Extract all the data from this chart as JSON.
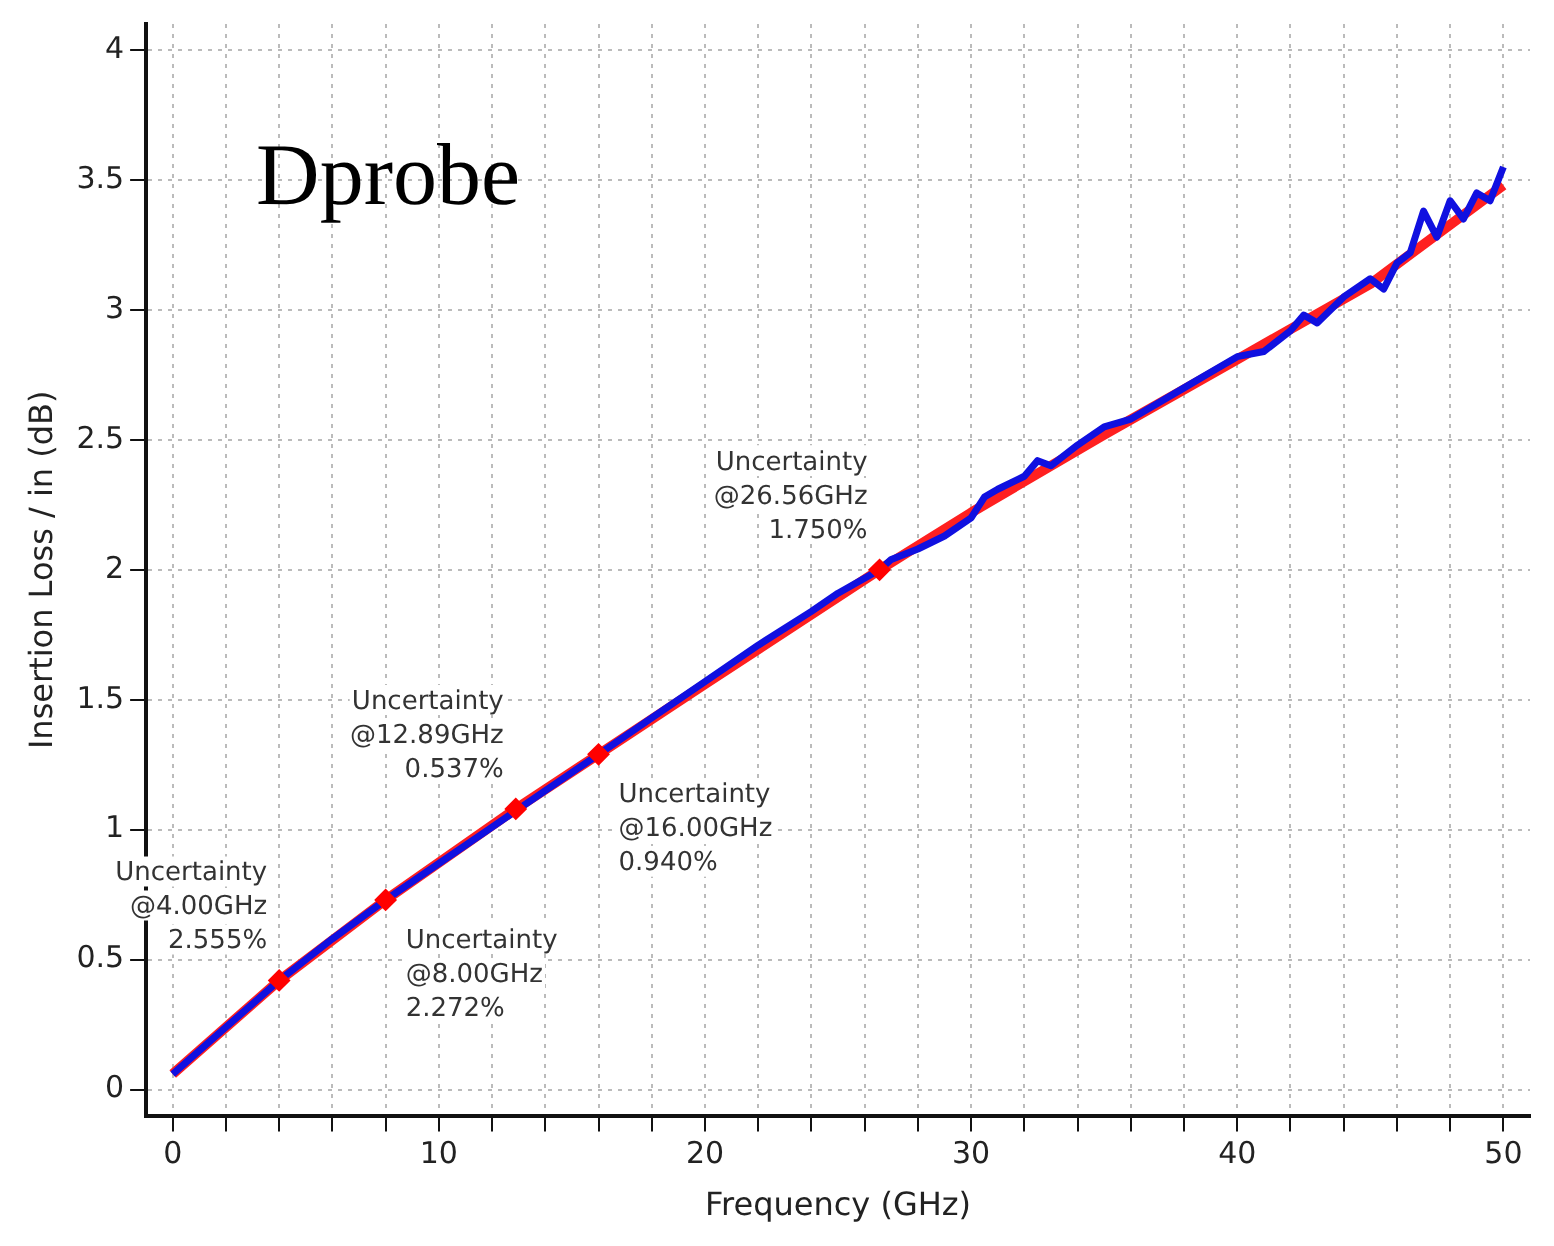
{
  "chart_data": {
    "type": "line",
    "xlabel": "Frequency (GHz)",
    "ylabel": "Insertion Loss / in (dB)",
    "xlim": [
      -1,
      51
    ],
    "ylim": [
      -0.1,
      4.1
    ],
    "xticks": [
      0,
      {
        "value": 2,
        "label": null
      },
      {
        "value": 4,
        "label": null
      },
      {
        "value": 6,
        "label": null
      },
      {
        "value": 8,
        "label": null
      },
      10,
      {
        "value": 12,
        "label": null
      },
      {
        "value": 14,
        "label": null
      },
      {
        "value": 16,
        "label": null
      },
      {
        "value": 18,
        "label": null
      },
      20,
      {
        "value": 22,
        "label": null
      },
      {
        "value": 24,
        "label": null
      },
      {
        "value": 26,
        "label": null
      },
      {
        "value": 28,
        "label": null
      },
      30,
      {
        "value": 32,
        "label": null
      },
      {
        "value": 34,
        "label": null
      },
      {
        "value": 36,
        "label": null
      },
      {
        "value": 38,
        "label": null
      },
      40,
      {
        "value": 42,
        "label": null
      },
      {
        "value": 44,
        "label": null
      },
      {
        "value": 46,
        "label": null
      },
      {
        "value": 48,
        "label": null
      },
      50
    ],
    "yticks": [
      0,
      0.5,
      1,
      1.5,
      2,
      2.5,
      3,
      3.5,
      4
    ],
    "grid": true,
    "legend": false,
    "line_style": "solid",
    "marker": "none",
    "series": [
      {
        "color": "#ff2020",
        "x": [
          0,
          4,
          8,
          12.89,
          16,
          20,
          26.56,
          30,
          35,
          40,
          45,
          50
        ],
        "values": [
          0.06,
          0.42,
          0.73,
          1.08,
          1.29,
          1.56,
          2.0,
          2.22,
          2.52,
          2.81,
          3.1,
          3.48
        ]
      },
      {
        "color": "#1010e0",
        "x": [
          0,
          1,
          2,
          3,
          4,
          6,
          8,
          10,
          12,
          13,
          14,
          16,
          18,
          20,
          22,
          24,
          25,
          26.56,
          27,
          28,
          29,
          30,
          30.5,
          31,
          32,
          32.5,
          33,
          34,
          35,
          36,
          37,
          38,
          39,
          40,
          41,
          42,
          42.5,
          43,
          44,
          45,
          45.5,
          46,
          46.5,
          47,
          47.5,
          48,
          48.5,
          49,
          49.5,
          50
        ],
        "values": [
          0.06,
          0.15,
          0.24,
          0.33,
          0.42,
          0.58,
          0.73,
          0.87,
          1.01,
          1.08,
          1.15,
          1.29,
          1.43,
          1.57,
          1.71,
          1.84,
          1.91,
          2.0,
          2.04,
          2.08,
          2.13,
          2.2,
          2.28,
          2.31,
          2.36,
          2.42,
          2.4,
          2.48,
          2.55,
          2.58,
          2.64,
          2.7,
          2.76,
          2.82,
          2.84,
          2.92,
          2.98,
          2.95,
          3.05,
          3.12,
          3.08,
          3.18,
          3.22,
          3.38,
          3.28,
          3.42,
          3.35,
          3.45,
          3.42,
          3.55
        ]
      },
      {
        "type": "scatter",
        "color": "#ff0000",
        "marker": "diamond",
        "x": [
          4,
          8,
          12.89,
          16,
          26.56
        ],
        "values": [
          0.42,
          0.73,
          1.08,
          1.29,
          2.0
        ]
      }
    ],
    "annotations": [
      "Dprobe",
      {
        "text": "Uncertainty\n@4.00GHz\n2.555%",
        "x": 4,
        "y": 0.42
      },
      {
        "text": "Uncertainty\n@8.00GHz\n2.272%",
        "x": 8,
        "y": 0.73
      },
      {
        "text": "Uncertainty\n@12.89GHz\n0.537%",
        "x": 12.89,
        "y": 1.08
      },
      {
        "text": "Uncertainty\n@16.00GHz\n0.940%",
        "x": 16,
        "y": 1.29
      },
      {
        "text": "Uncertainty\n@26.56GHz\n1.750%",
        "x": 26.56,
        "y": 2.0
      }
    ]
  }
}
